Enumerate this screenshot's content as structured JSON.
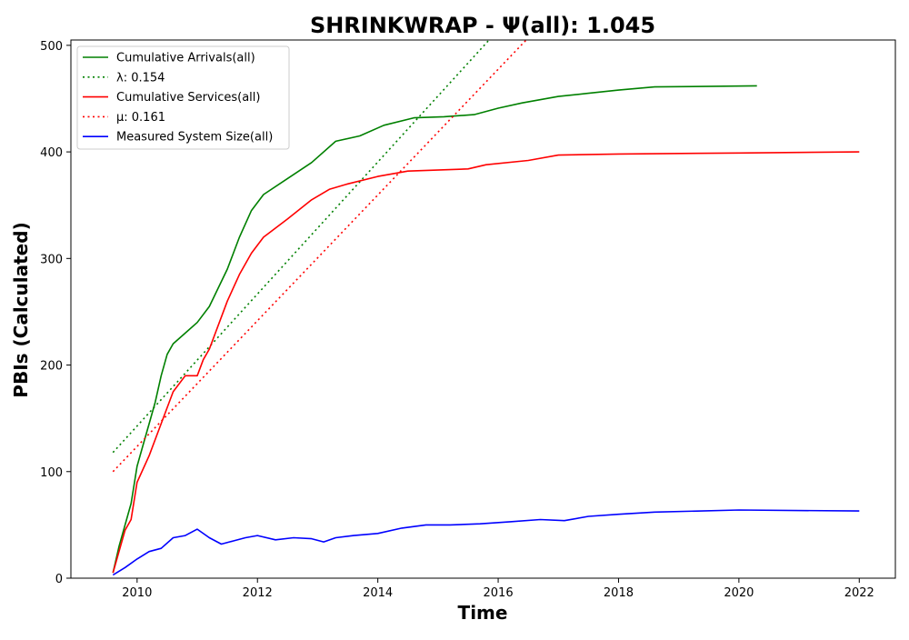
{
  "chart_data": {
    "type": "line",
    "title": "SHRINKWRAP -  Ψ(all): 1.045",
    "xlabel": "Time",
    "ylabel": "PBIs (Calculated)",
    "xlim": [
      2008.9,
      2022.6
    ],
    "ylim": [
      0,
      505
    ],
    "xticks": [
      2010,
      2012,
      2014,
      2016,
      2018,
      2020,
      2022
    ],
    "yticks": [
      0,
      100,
      200,
      300,
      400,
      500
    ],
    "grid": false,
    "legend_position": "top-left",
    "legend": [
      {
        "label": "Cumulative Arrivals(all)",
        "color": "#008000",
        "style": "solid"
      },
      {
        "label": "λ: 0.154",
        "color": "#008000",
        "style": "dotted"
      },
      {
        "label": "Cumulative Services(all)",
        "color": "#ff0000",
        "style": "solid"
      },
      {
        "label": "μ: 0.161",
        "color": "#ff0000",
        "style": "dotted"
      },
      {
        "label": "Measured System Size(all)",
        "color": "#0000ff",
        "style": "solid"
      }
    ],
    "series": [
      {
        "name": "Cumulative Arrivals(all)",
        "color": "#008000",
        "style": "solid",
        "x": [
          2009.6,
          2009.7,
          2009.8,
          2009.9,
          2010.0,
          2010.1,
          2010.2,
          2010.3,
          2010.4,
          2010.5,
          2010.6,
          2010.8,
          2011.0,
          2011.2,
          2011.5,
          2011.7,
          2011.9,
          2012.1,
          2012.5,
          2012.9,
          2013.3,
          2013.7,
          2014.1,
          2014.6,
          2015.1,
          2015.6,
          2016.0,
          2016.4,
          2017.0,
          2017.5,
          2018.0,
          2018.6,
          2020.3
        ],
        "y": [
          5,
          30,
          50,
          70,
          105,
          125,
          145,
          165,
          190,
          210,
          220,
          230,
          240,
          255,
          290,
          320,
          345,
          360,
          375,
          390,
          410,
          415,
          425,
          432,
          433,
          435,
          441,
          446,
          452,
          455,
          458,
          461,
          462
        ]
      },
      {
        "name": "λ: 0.154",
        "color": "#008000",
        "style": "dotted",
        "x": [
          2009.6,
          2015.93
        ],
        "y": [
          118,
          510
        ]
      },
      {
        "name": "Cumulative Services(all)",
        "color": "#ff0000",
        "style": "solid",
        "x": [
          2009.6,
          2009.8,
          2009.9,
          2010.0,
          2010.2,
          2010.4,
          2010.6,
          2010.8,
          2011.0,
          2011.1,
          2011.2,
          2011.5,
          2011.7,
          2011.9,
          2012.1,
          2012.5,
          2012.9,
          2013.2,
          2013.5,
          2014.0,
          2014.5,
          2015.5,
          2015.8,
          2016.5,
          2017.0,
          2018.0,
          2020.0,
          2022.0
        ],
        "y": [
          5,
          45,
          55,
          90,
          115,
          145,
          175,
          190,
          190,
          205,
          215,
          260,
          285,
          305,
          320,
          337,
          355,
          365,
          370,
          377,
          382,
          384,
          388,
          392,
          397,
          398,
          399,
          400
        ]
      },
      {
        "name": "μ: 0.161",
        "color": "#ff0000",
        "style": "dotted",
        "x": [
          2009.6,
          2016.55
        ],
        "y": [
          100,
          510
        ]
      },
      {
        "name": "Measured System Size(all)",
        "color": "#0000ff",
        "style": "solid",
        "x": [
          2009.6,
          2009.8,
          2010.0,
          2010.2,
          2010.4,
          2010.6,
          2010.8,
          2011.0,
          2011.2,
          2011.4,
          2011.6,
          2011.8,
          2012.0,
          2012.3,
          2012.6,
          2012.9,
          2013.1,
          2013.3,
          2013.6,
          2014.0,
          2014.4,
          2014.8,
          2015.2,
          2015.7,
          2016.2,
          2016.7,
          2017.1,
          2017.5,
          2018.0,
          2018.6,
          2020.0,
          2022.0
        ],
        "y": [
          3,
          10,
          18,
          25,
          28,
          38,
          40,
          46,
          38,
          32,
          35,
          38,
          40,
          36,
          38,
          37,
          34,
          38,
          40,
          42,
          47,
          50,
          50,
          51,
          53,
          55,
          54,
          58,
          60,
          62,
          64,
          63
        ]
      }
    ]
  }
}
